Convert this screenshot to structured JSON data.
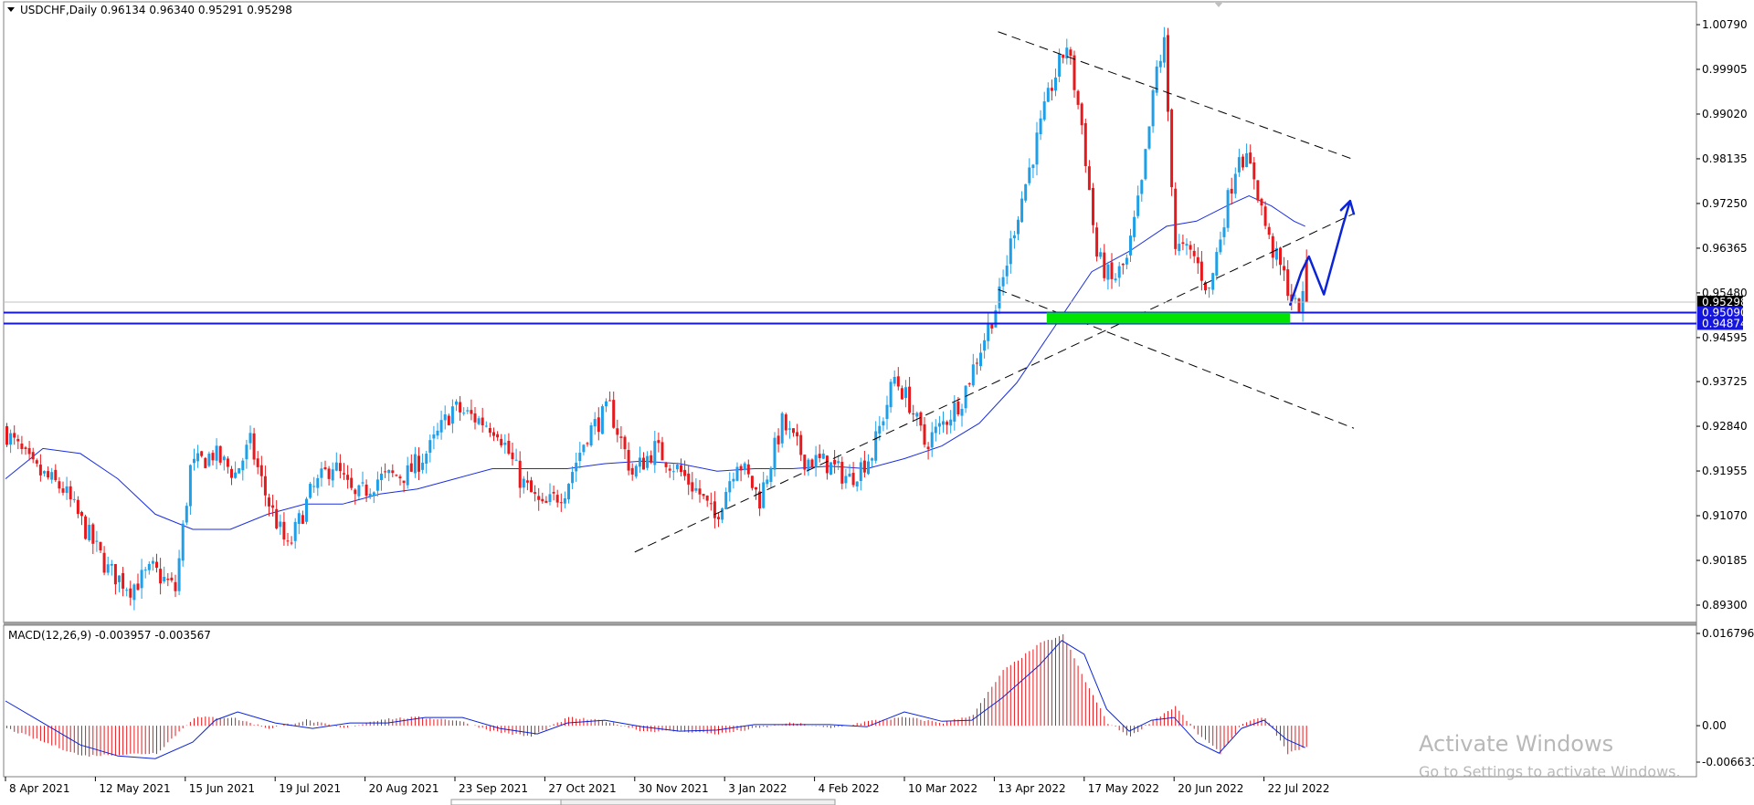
{
  "chart_data": [
    {
      "type": "candlestick",
      "symbol_line": "USDCHF,Daily  0.96134 0.96340 0.95291 0.95298",
      "timeframe": "Daily",
      "ohlc_last": {
        "open": 0.96134,
        "high": 0.9634,
        "low": 0.95291,
        "close": 0.95298
      },
      "ylim": [
        0.893,
        1.0079
      ],
      "price_ticks": [
        "1.00790",
        "0.99905",
        "0.99020",
        "0.98135",
        "0.97250",
        "0.96365",
        "0.95480",
        "0.94595",
        "0.93725",
        "0.92840",
        "0.91955",
        "0.91070",
        "0.90185",
        "0.89300"
      ],
      "price_tick_values": [
        1.0079,
        0.99905,
        0.9902,
        0.98135,
        0.9725,
        0.96365,
        0.9548,
        0.94595,
        0.93725,
        0.9284,
        0.91955,
        0.9107,
        0.90185,
        0.893
      ],
      "date_ticks": [
        "8 Apr 2021",
        "12 May 2021",
        "15 Jun 2021",
        "19 Jul 2021",
        "20 Aug 2021",
        "23 Sep 2021",
        "27 Oct 2021",
        "30 Nov 2021",
        "3 Jan 2022",
        "4 Feb 2022",
        "10 Mar 2022",
        "13 Apr 2022",
        "17 May 2022",
        "20 Jun 2022",
        "22 Jul 2022"
      ],
      "date_tick_bar_index": [
        0,
        24,
        48,
        72,
        96,
        120,
        144,
        168,
        192,
        216,
        240,
        264,
        288,
        312,
        336
      ],
      "bar_count": 348,
      "candle_up_color": "#1e9fe8",
      "candle_down_color": "#e8191d",
      "price_path": [
        [
          0,
          0.928
        ],
        [
          8,
          0.92
        ],
        [
          16,
          0.916
        ],
        [
          22,
          0.908
        ],
        [
          28,
          0.9
        ],
        [
          34,
          0.8965
        ],
        [
          40,
          0.9
        ],
        [
          46,
          0.896
        ],
        [
          50,
          0.92
        ],
        [
          56,
          0.923
        ],
        [
          62,
          0.919
        ],
        [
          66,
          0.925
        ],
        [
          70,
          0.915
        ],
        [
          76,
          0.904
        ],
        [
          82,
          0.915
        ],
        [
          88,
          0.921
        ],
        [
          94,
          0.914
        ],
        [
          100,
          0.918
        ],
        [
          108,
          0.919
        ],
        [
          114,
          0.924
        ],
        [
          120,
          0.932
        ],
        [
          126,
          0.93
        ],
        [
          132,
          0.928
        ],
        [
          138,
          0.918
        ],
        [
          144,
          0.912
        ],
        [
          150,
          0.916
        ],
        [
          156,
          0.927
        ],
        [
          162,
          0.932
        ],
        [
          168,
          0.919
        ],
        [
          174,
          0.924
        ],
        [
          180,
          0.92
        ],
        [
          186,
          0.915
        ],
        [
          190,
          0.91
        ],
        [
          196,
          0.922
        ],
        [
          202,
          0.914
        ],
        [
          208,
          0.929
        ],
        [
          214,
          0.922
        ],
        [
          220,
          0.921
        ],
        [
          226,
          0.918
        ],
        [
          232,
          0.923
        ],
        [
          238,
          0.938
        ],
        [
          242,
          0.933
        ],
        [
          246,
          0.925
        ],
        [
          250,
          0.928
        ],
        [
          256,
          0.934
        ],
        [
          260,
          0.942
        ],
        [
          266,
          0.954
        ],
        [
          270,
          0.968
        ],
        [
          276,
          0.985
        ],
        [
          280,
          0.996
        ],
        [
          284,
          1.004
        ],
        [
          288,
          0.988
        ],
        [
          292,
          0.962
        ],
        [
          296,
          0.957
        ],
        [
          300,
          0.961
        ],
        [
          304,
          0.976
        ],
        [
          308,
          0.999
        ],
        [
          310,
          1.004
        ],
        [
          313,
          0.964
        ],
        [
          318,
          0.962
        ],
        [
          322,
          0.955
        ],
        [
          326,
          0.97
        ],
        [
          330,
          0.983
        ],
        [
          334,
          0.978
        ],
        [
          338,
          0.965
        ],
        [
          342,
          0.958
        ],
        [
          345,
          0.952
        ],
        [
          347,
          0.953
        ]
      ],
      "moving_average": [
        [
          0,
          0.918
        ],
        [
          10,
          0.924
        ],
        [
          20,
          0.923
        ],
        [
          30,
          0.918
        ],
        [
          40,
          0.911
        ],
        [
          50,
          0.908
        ],
        [
          60,
          0.908
        ],
        [
          70,
          0.911
        ],
        [
          80,
          0.913
        ],
        [
          90,
          0.913
        ],
        [
          100,
          0.915
        ],
        [
          110,
          0.916
        ],
        [
          120,
          0.918
        ],
        [
          130,
          0.92
        ],
        [
          140,
          0.92
        ],
        [
          150,
          0.92
        ],
        [
          160,
          0.921
        ],
        [
          170,
          0.9215
        ],
        [
          180,
          0.921
        ],
        [
          190,
          0.9195
        ],
        [
          200,
          0.92
        ],
        [
          210,
          0.92
        ],
        [
          220,
          0.9205
        ],
        [
          230,
          0.92
        ],
        [
          240,
          0.922
        ],
        [
          250,
          0.9245
        ],
        [
          260,
          0.929
        ],
        [
          270,
          0.937
        ],
        [
          280,
          0.948
        ],
        [
          290,
          0.959
        ],
        [
          300,
          0.963
        ],
        [
          310,
          0.968
        ],
        [
          318,
          0.969
        ],
        [
          326,
          0.972
        ],
        [
          332,
          0.974
        ],
        [
          338,
          0.972
        ],
        [
          344,
          0.969
        ],
        [
          347,
          0.968
        ]
      ],
      "annotations": {
        "resistance_line": {
          "from": [
            265,
            1.0065
          ],
          "to": [
            360,
            0.9812
          ]
        },
        "upper_support_line": {
          "from": [
            265,
            0.9555
          ],
          "to": [
            360,
            0.928
          ]
        },
        "rising_trendline": {
          "from": [
            168,
            0.9035
          ],
          "to": [
            360,
            0.9705
          ]
        },
        "horizontal_lines": [
          0.9509,
          0.94874
        ],
        "support_zone": {
          "x_from": 278,
          "x_to": 343,
          "price_low": 0.94874,
          "price_high": 0.9509,
          "color": "#00e400"
        },
        "forecast_arrow_color": "#0b24d6",
        "forecast_path": [
          [
            343,
            0.9525
          ],
          [
            346,
            0.959
          ],
          [
            348,
            0.962
          ],
          [
            352,
            0.9545
          ],
          [
            357,
            0.968
          ],
          [
            359,
            0.973
          ]
        ]
      },
      "price_badges": [
        {
          "label": "0.95298",
          "value": 0.95298,
          "bg": "#000000"
        },
        {
          "label": "0.95090",
          "value": 0.9509,
          "bg": "#1515e0"
        },
        {
          "label": "0.94874",
          "value": 0.94874,
          "bg": "#1515e0"
        }
      ]
    },
    {
      "type": "macd",
      "title_line": "MACD(12,26,9) -0.003957 -0.003567",
      "parameters": [
        12,
        26,
        9
      ],
      "main": -0.003957,
      "signal": -0.003567,
      "ylim": [
        -0.006631,
        0.016796
      ],
      "ticks": [
        "0.016796",
        "0.00",
        "-0.006631"
      ],
      "tick_values": [
        0.016796,
        0.0,
        -0.006631
      ],
      "histogram_color": "#e8191d",
      "signal_color": "#0b24d6",
      "histogram_path": [
        [
          0,
          -0.0005
        ],
        [
          20,
          -0.0055
        ],
        [
          40,
          -0.005
        ],
        [
          50,
          0.0015
        ],
        [
          60,
          0.0015
        ],
        [
          70,
          -0.0005
        ],
        [
          80,
          0.001
        ],
        [
          90,
          -0.0005
        ],
        [
          100,
          0.0012
        ],
        [
          110,
          0.0015
        ],
        [
          120,
          0.001
        ],
        [
          130,
          -0.001
        ],
        [
          140,
          -0.002
        ],
        [
          150,
          0.0015
        ],
        [
          160,
          0.0008
        ],
        [
          170,
          -0.001
        ],
        [
          180,
          -0.001
        ],
        [
          190,
          -0.0015
        ],
        [
          200,
          -0.0005
        ],
        [
          210,
          0.0005
        ],
        [
          220,
          -0.0005
        ],
        [
          230,
          0.0008
        ],
        [
          240,
          0.0015
        ],
        [
          250,
          0.0005
        ],
        [
          258,
          0.002
        ],
        [
          266,
          0.01
        ],
        [
          276,
          0.015
        ],
        [
          282,
          0.0165
        ],
        [
          288,
          0.008
        ],
        [
          294,
          0.0005
        ],
        [
          300,
          -0.002
        ],
        [
          306,
          0.001
        ],
        [
          312,
          0.0035
        ],
        [
          318,
          -0.0015
        ],
        [
          324,
          -0.005
        ],
        [
          330,
          0.0005
        ],
        [
          336,
          0.0015
        ],
        [
          342,
          -0.005
        ],
        [
          347,
          -0.004
        ]
      ],
      "signal_path": [
        [
          0,
          0.0045
        ],
        [
          10,
          0.0005
        ],
        [
          20,
          -0.0035
        ],
        [
          30,
          -0.0055
        ],
        [
          40,
          -0.006
        ],
        [
          50,
          -0.003
        ],
        [
          56,
          0.001
        ],
        [
          62,
          0.0025
        ],
        [
          72,
          0.0005
        ],
        [
          82,
          -0.0005
        ],
        [
          92,
          0.0005
        ],
        [
          102,
          0.0005
        ],
        [
          112,
          0.0015
        ],
        [
          122,
          0.0015
        ],
        [
          132,
          -0.0005
        ],
        [
          142,
          -0.0015
        ],
        [
          150,
          0.0005
        ],
        [
          160,
          0.001
        ],
        [
          170,
          -0.0002
        ],
        [
          180,
          -0.001
        ],
        [
          190,
          -0.0008
        ],
        [
          200,
          0.0002
        ],
        [
          210,
          0.0002
        ],
        [
          220,
          0.0002
        ],
        [
          230,
          -0.0002
        ],
        [
          240,
          0.0025
        ],
        [
          250,
          0.0008
        ],
        [
          258,
          0.001
        ],
        [
          266,
          0.005
        ],
        [
          276,
          0.011
        ],
        [
          282,
          0.0155
        ],
        [
          288,
          0.013
        ],
        [
          294,
          0.003
        ],
        [
          300,
          -0.001
        ],
        [
          306,
          0.001
        ],
        [
          312,
          0.0015
        ],
        [
          318,
          -0.003
        ],
        [
          324,
          -0.005
        ],
        [
          330,
          -0.0005
        ],
        [
          336,
          0.001
        ],
        [
          342,
          -0.0025
        ],
        [
          347,
          -0.004
        ]
      ]
    }
  ],
  "watermark": {
    "line1": "Activate Windows",
    "line2": "Go to Settings to activate Windows."
  }
}
